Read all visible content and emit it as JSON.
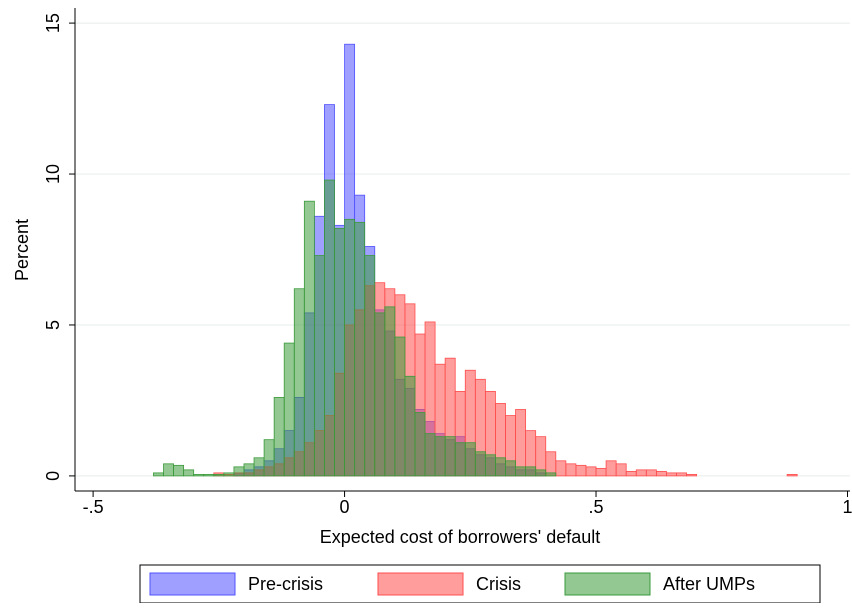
{
  "chart_data": {
    "type": "histogram",
    "xlabel": "Expected cost of borrowers' default",
    "ylabel": "Percent",
    "bins": [
      -0.38,
      -0.36,
      -0.34,
      -0.32,
      -0.3,
      -0.28,
      -0.26,
      -0.24,
      -0.22,
      -0.2,
      -0.18,
      -0.16,
      -0.14,
      -0.12,
      -0.1,
      -0.08,
      -0.06,
      -0.04,
      -0.02,
      0,
      0.02,
      0.04,
      0.06,
      0.08,
      0.1,
      0.12,
      0.14,
      0.16,
      0.18,
      0.2,
      0.22,
      0.24,
      0.26,
      0.28,
      0.3,
      0.32,
      0.34,
      0.36,
      0.38,
      0.4,
      0.42,
      0.44,
      0.46,
      0.48,
      0.5,
      0.52,
      0.54,
      0.56,
      0.58,
      0.6,
      0.62,
      0.64,
      0.66,
      0.68,
      0.7,
      0.72,
      0.74,
      0.76,
      0.78,
      0.8,
      0.82,
      0.84,
      0.86,
      0.88,
      0.9
    ],
    "series": [
      {
        "name": "Pre-crisis",
        "color": "#5050ff",
        "values": [
          0,
          0,
          0,
          0,
          0,
          0,
          0,
          0,
          0.1,
          0.2,
          0.3,
          0.5,
          0.9,
          1.5,
          2.6,
          5.4,
          8.6,
          12.3,
          8.3,
          14.3,
          9.3,
          7.6,
          5.5,
          4.8,
          3.2,
          2.9,
          2.2,
          1.8,
          1.4,
          1.2,
          1.3,
          0.9,
          0.7,
          0.6,
          0.4,
          0.3,
          0.2,
          0.2,
          0.1,
          0,
          0,
          0,
          0,
          0,
          0,
          0,
          0,
          0,
          0,
          0,
          0,
          0,
          0,
          0,
          0,
          0,
          0,
          0,
          0,
          0,
          0,
          0,
          0,
          0
        ]
      },
      {
        "name": "Crisis",
        "color": "#ff4d4d",
        "values": [
          0,
          0,
          0,
          0,
          0,
          0,
          0.1,
          0.05,
          0.1,
          0.1,
          0.2,
          0.3,
          0.4,
          0.6,
          0.8,
          1.1,
          1.5,
          2.0,
          3.4,
          5.0,
          5.5,
          6.3,
          6.4,
          6.2,
          6.0,
          5.7,
          4.7,
          5.1,
          3.7,
          3.9,
          2.8,
          3.5,
          3.2,
          2.8,
          2.4,
          2.0,
          2.2,
          1.5,
          1.3,
          0.8,
          0.5,
          0.4,
          0.35,
          0.3,
          0.25,
          0.5,
          0.4,
          0.15,
          0.2,
          0.2,
          0.15,
          0.1,
          0.1,
          0.05,
          0,
          0,
          0,
          0,
          0,
          0,
          0,
          0,
          0,
          0.05
        ]
      },
      {
        "name": "After UMPs",
        "color": "#3a9a3a",
        "values": [
          0.1,
          0.4,
          0.35,
          0.2,
          0.05,
          0.05,
          0.05,
          0.1,
          0.3,
          0.4,
          0.6,
          1.2,
          2.6,
          4.4,
          6.2,
          9.1,
          7.3,
          9.8,
          8.2,
          8.5,
          8.4,
          7.3,
          5.4,
          5.6,
          4.6,
          3.3,
          2.1,
          1.4,
          1.3,
          1.3,
          1.1,
          1.1,
          0.8,
          0.7,
          0.6,
          0.5,
          0.3,
          0.3,
          0.2,
          0.1,
          0,
          0,
          0,
          0,
          0,
          0,
          0,
          0,
          0,
          0,
          0,
          0,
          0,
          0,
          0,
          0,
          0,
          0,
          0,
          0,
          0,
          0,
          0,
          0
        ]
      }
    ],
    "xlim": [
      -0.536,
      1.005
    ],
    "xticks": [
      {
        "value": -0.5,
        "label": "-.5"
      },
      0,
      {
        "value": 0.5,
        "label": ".5"
      },
      1
    ],
    "ylim": [
      -0.5,
      15.5
    ],
    "yticks": [
      0,
      5,
      10,
      15
    ],
    "grid": true,
    "legend": "bottom"
  }
}
